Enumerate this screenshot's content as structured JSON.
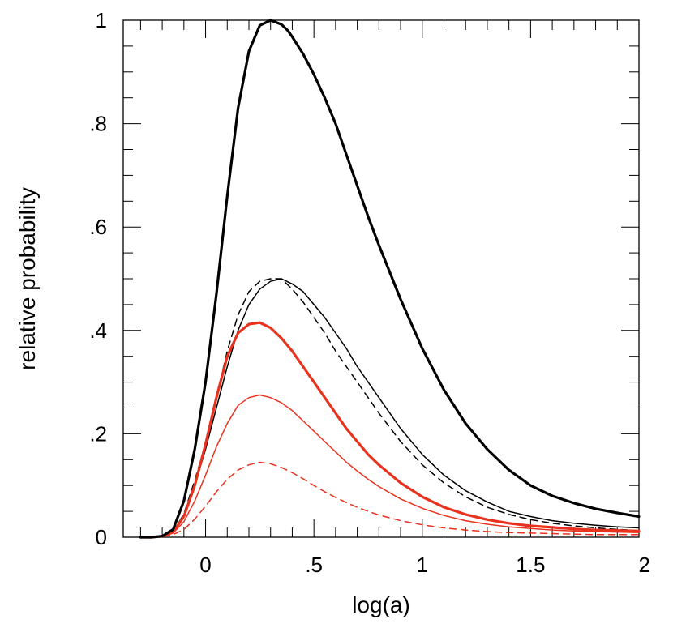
{
  "chart_data": {
    "type": "line",
    "title": "",
    "xlabel": "log(a)",
    "ylabel": "relative probability",
    "xlim": [
      -0.38,
      2.0
    ],
    "ylim": [
      0,
      1
    ],
    "grid": false,
    "legend": "none",
    "xticks": [
      {
        "value": 0,
        "label": "0"
      },
      {
        "value": 0.5,
        "label": ".5"
      },
      {
        "value": 1,
        "label": "1"
      },
      {
        "value": 1.5,
        "label": "1.5"
      },
      {
        "value": 2,
        "label": "2"
      }
    ],
    "yticks": [
      {
        "value": 0,
        "label": "0"
      },
      {
        "value": 0.2,
        "label": ".2"
      },
      {
        "value": 0.4,
        "label": ".4"
      },
      {
        "value": 0.6,
        "label": ".6"
      },
      {
        "value": 0.8,
        "label": ".8"
      },
      {
        "value": 1,
        "label": "1"
      }
    ],
    "x_minor_step": 0.1,
    "y_minor_step": 0.05,
    "series": [
      {
        "name": "black-thick",
        "color": "#000000",
        "width": 3.2,
        "dash": "",
        "x": [
          -0.3,
          -0.25,
          -0.2,
          -0.15,
          -0.1,
          -0.05,
          0,
          0.05,
          0.1,
          0.15,
          0.2,
          0.25,
          0.3,
          0.35,
          0.38,
          0.4,
          0.45,
          0.5,
          0.55,
          0.6,
          0.65,
          0.7,
          0.75,
          0.8,
          0.9,
          1.0,
          1.1,
          1.2,
          1.3,
          1.4,
          1.5,
          1.6,
          1.7,
          1.8,
          1.9,
          2.0
        ],
        "values": [
          0,
          0,
          0.002,
          0.015,
          0.07,
          0.17,
          0.3,
          0.47,
          0.66,
          0.83,
          0.94,
          0.99,
          1.0,
          0.992,
          0.98,
          0.968,
          0.935,
          0.895,
          0.85,
          0.8,
          0.74,
          0.68,
          0.62,
          0.565,
          0.46,
          0.365,
          0.285,
          0.22,
          0.17,
          0.13,
          0.1,
          0.08,
          0.066,
          0.055,
          0.047,
          0.04
        ]
      },
      {
        "name": "black-thin",
        "color": "#000000",
        "width": 1.5,
        "dash": "",
        "x": [
          -0.3,
          -0.25,
          -0.2,
          -0.15,
          -0.1,
          -0.05,
          0,
          0.05,
          0.1,
          0.15,
          0.2,
          0.25,
          0.3,
          0.35,
          0.4,
          0.45,
          0.5,
          0.55,
          0.6,
          0.65,
          0.7,
          0.75,
          0.8,
          0.9,
          1.0,
          1.1,
          1.2,
          1.3,
          1.4,
          1.5,
          1.6,
          1.7,
          1.8,
          1.9,
          2.0
        ],
        "values": [
          0,
          0,
          0.002,
          0.01,
          0.04,
          0.1,
          0.17,
          0.25,
          0.33,
          0.4,
          0.45,
          0.48,
          0.495,
          0.5,
          0.49,
          0.475,
          0.45,
          0.425,
          0.395,
          0.365,
          0.33,
          0.3,
          0.27,
          0.21,
          0.16,
          0.12,
          0.09,
          0.068,
          0.05,
          0.04,
          0.032,
          0.027,
          0.023,
          0.02,
          0.018
        ]
      },
      {
        "name": "black-dashed",
        "color": "#000000",
        "width": 1.5,
        "dash": "8,6",
        "x": [
          -0.3,
          -0.25,
          -0.2,
          -0.15,
          -0.1,
          -0.05,
          0,
          0.05,
          0.1,
          0.15,
          0.2,
          0.25,
          0.3,
          0.35,
          0.4,
          0.45,
          0.5,
          0.55,
          0.6,
          0.65,
          0.7,
          0.75,
          0.8,
          0.9,
          1.0,
          1.1,
          1.2,
          1.3,
          1.4,
          1.5,
          1.6,
          1.7,
          1.8,
          1.9,
          2.0
        ],
        "values": [
          0,
          0,
          0.002,
          0.01,
          0.045,
          0.11,
          0.18,
          0.27,
          0.36,
          0.43,
          0.475,
          0.495,
          0.5,
          0.5,
          0.48,
          0.455,
          0.425,
          0.395,
          0.36,
          0.33,
          0.3,
          0.27,
          0.24,
          0.185,
          0.14,
          0.105,
          0.078,
          0.058,
          0.044,
          0.034,
          0.027,
          0.022,
          0.018,
          0.015,
          0.013
        ]
      },
      {
        "name": "red-thick",
        "color": "#e8321e",
        "width": 3.2,
        "dash": "",
        "x": [
          -0.3,
          -0.25,
          -0.2,
          -0.15,
          -0.1,
          -0.05,
          0,
          0.05,
          0.1,
          0.15,
          0.2,
          0.25,
          0.3,
          0.35,
          0.4,
          0.45,
          0.5,
          0.55,
          0.6,
          0.65,
          0.7,
          0.75,
          0.8,
          0.9,
          1.0,
          1.1,
          1.2,
          1.3,
          1.4,
          1.5,
          1.6,
          1.7,
          1.8,
          1.9,
          2.0
        ],
        "values": [
          0,
          0,
          0.002,
          0.01,
          0.04,
          0.1,
          0.18,
          0.27,
          0.35,
          0.395,
          0.412,
          0.415,
          0.405,
          0.385,
          0.36,
          0.33,
          0.3,
          0.27,
          0.24,
          0.21,
          0.185,
          0.16,
          0.14,
          0.105,
          0.078,
          0.058,
          0.044,
          0.034,
          0.027,
          0.022,
          0.019,
          0.016,
          0.014,
          0.013,
          0.012
        ]
      },
      {
        "name": "red-thin",
        "color": "#e8321e",
        "width": 1.5,
        "dash": "",
        "x": [
          -0.3,
          -0.25,
          -0.2,
          -0.15,
          -0.1,
          -0.05,
          0,
          0.05,
          0.1,
          0.15,
          0.2,
          0.25,
          0.3,
          0.35,
          0.4,
          0.45,
          0.5,
          0.55,
          0.6,
          0.65,
          0.7,
          0.75,
          0.8,
          0.9,
          1.0,
          1.1,
          1.2,
          1.3,
          1.4,
          1.5,
          1.6,
          1.7,
          1.8,
          1.9,
          2.0
        ],
        "values": [
          0,
          0,
          0.001,
          0.008,
          0.03,
          0.07,
          0.12,
          0.175,
          0.22,
          0.255,
          0.27,
          0.275,
          0.27,
          0.26,
          0.245,
          0.225,
          0.205,
          0.185,
          0.165,
          0.145,
          0.128,
          0.112,
          0.098,
          0.074,
          0.056,
          0.042,
          0.032,
          0.025,
          0.02,
          0.017,
          0.014,
          0.012,
          0.011,
          0.01,
          0.009
        ]
      },
      {
        "name": "red-dashed",
        "color": "#e8321e",
        "width": 1.5,
        "dash": "8,6",
        "x": [
          -0.3,
          -0.25,
          -0.2,
          -0.15,
          -0.1,
          -0.05,
          0,
          0.05,
          0.1,
          0.15,
          0.2,
          0.25,
          0.3,
          0.35,
          0.4,
          0.45,
          0.5,
          0.55,
          0.6,
          0.65,
          0.7,
          0.75,
          0.8,
          0.9,
          1.0,
          1.1,
          1.2,
          1.3,
          1.4,
          1.5,
          1.6,
          1.7,
          1.8,
          1.9,
          2.0
        ],
        "values": [
          0,
          0,
          0.001,
          0.005,
          0.015,
          0.035,
          0.06,
          0.088,
          0.112,
          0.13,
          0.14,
          0.145,
          0.142,
          0.135,
          0.125,
          0.113,
          0.1,
          0.088,
          0.077,
          0.067,
          0.058,
          0.05,
          0.043,
          0.032,
          0.024,
          0.018,
          0.014,
          0.011,
          0.009,
          0.008,
          0.007,
          0.006,
          0.005,
          0.005,
          0.005
        ]
      }
    ]
  }
}
